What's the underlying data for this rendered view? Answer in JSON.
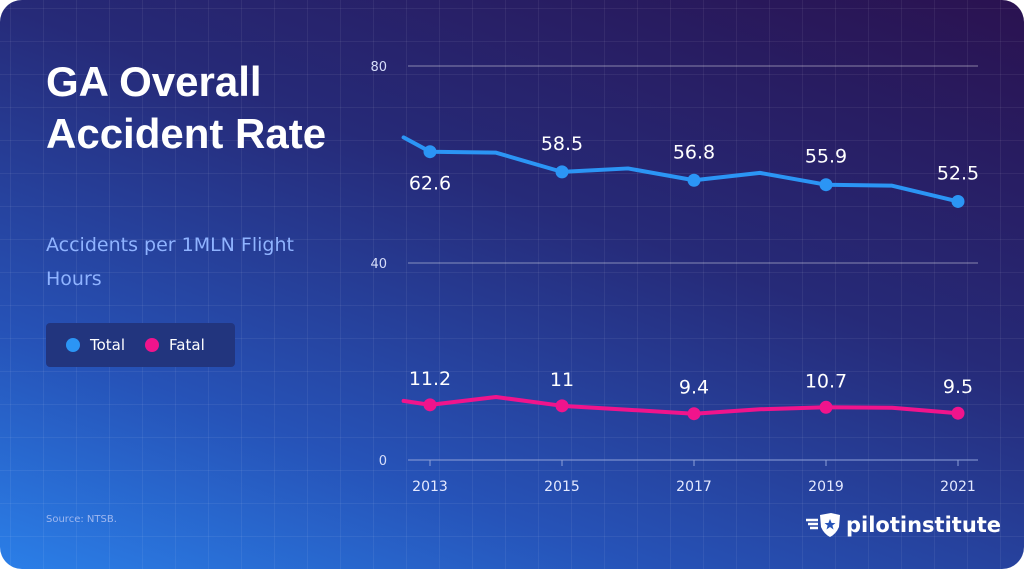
{
  "title": "GA Overall Accident Rate",
  "subtitle": "Accidents per 1MLN Flight Hours",
  "source": "Source: NTSB.",
  "logo": "pilotinstitute",
  "legend": [
    {
      "label": "Total",
      "color": "#2b95f5"
    },
    {
      "label": "Fatal",
      "color": "#f0148c"
    }
  ],
  "chart_data": {
    "type": "line",
    "title": "GA Overall Accident Rate",
    "ylabel": "Accidents per 1MLN Flight Hours",
    "ylim": [
      0,
      80
    ],
    "yticks": [
      0,
      40,
      80
    ],
    "xticks": [
      2013,
      2015,
      2017,
      2019,
      2021
    ],
    "grid": true,
    "legend_position": "left",
    "series": [
      {
        "name": "Total",
        "color": "#2b95f5",
        "x": [
          2012.6,
          2013,
          2014,
          2015,
          2016,
          2017,
          2018,
          2019,
          2020,
          2021
        ],
        "y": [
          65.5,
          62.6,
          62.4,
          58.5,
          59.2,
          56.8,
          58.3,
          55.9,
          55.7,
          52.5
        ],
        "labels": [
          {
            "x": 2013,
            "text": "62.6"
          },
          {
            "x": 2015,
            "text": "58.5"
          },
          {
            "x": 2017,
            "text": "56.8"
          },
          {
            "x": 2019,
            "text": "55.9"
          },
          {
            "x": 2021,
            "text": "52.5"
          }
        ]
      },
      {
        "name": "Fatal",
        "color": "#f0148c",
        "x": [
          2012.6,
          2013,
          2014,
          2015,
          2016,
          2017,
          2018,
          2019,
          2020,
          2021
        ],
        "y": [
          12.0,
          11.2,
          12.8,
          11,
          10.2,
          9.4,
          10.3,
          10.7,
          10.6,
          9.5
        ],
        "labels": [
          {
            "x": 2013,
            "text": "11.2"
          },
          {
            "x": 2015,
            "text": "11"
          },
          {
            "x": 2017,
            "text": "9.4"
          },
          {
            "x": 2019,
            "text": "10.7"
          },
          {
            "x": 2021,
            "text": "9.5"
          }
        ]
      }
    ]
  }
}
